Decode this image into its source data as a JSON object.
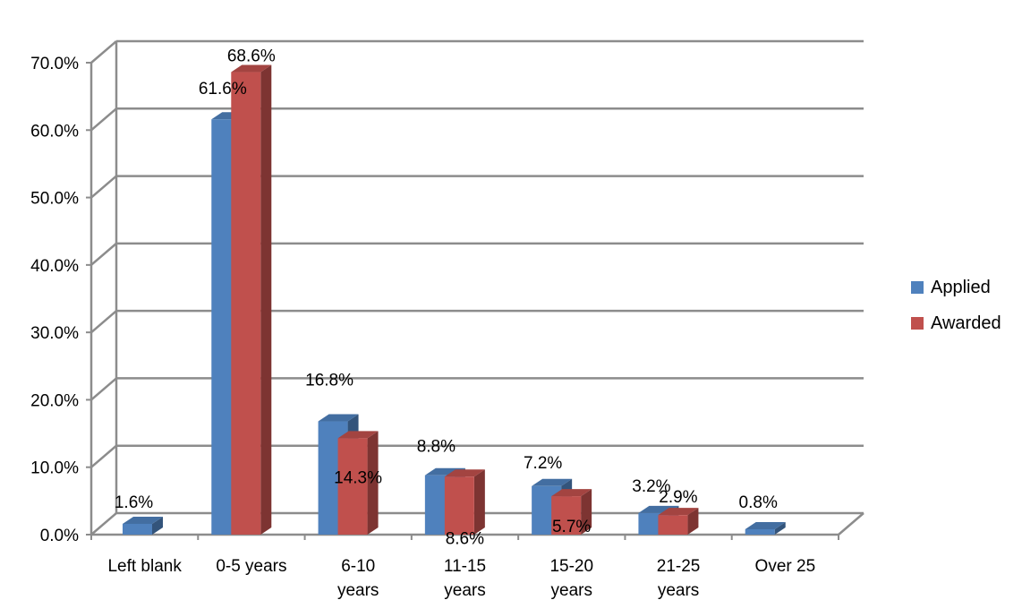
{
  "chart_data": {
    "type": "bar",
    "categories": [
      "Left blank",
      "0-5 years",
      "6-10 years",
      "11-15 years",
      "15-20 years",
      "21-25 years",
      "Over 25"
    ],
    "category_lines": [
      [
        "Left blank"
      ],
      [
        "0-5 years"
      ],
      [
        "6-10",
        "years"
      ],
      [
        "11-15",
        "years"
      ],
      [
        "15-20",
        "years"
      ],
      [
        "21-25",
        "years"
      ],
      [
        "Over 25"
      ]
    ],
    "series": [
      {
        "name": "Applied",
        "color": "#4F81BD",
        "values": [
          1.6,
          61.6,
          16.8,
          8.8,
          7.2,
          3.2,
          0.8
        ],
        "labels": [
          "1.6%",
          "61.6%",
          "16.8%",
          "8.8%",
          "7.2%",
          "3.2%",
          "0.8%"
        ]
      },
      {
        "name": "Awarded",
        "color": "#C0504D",
        "values": [
          null,
          68.6,
          14.3,
          8.6,
          5.7,
          2.9,
          null
        ],
        "labels": [
          "",
          "68.6%",
          "14.3%",
          "8.6%",
          "5.7%",
          "2.9%",
          ""
        ]
      }
    ],
    "yticks": [
      "0.0%",
      "10.0%",
      "20.0%",
      "30.0%",
      "40.0%",
      "50.0%",
      "60.0%",
      "70.0%"
    ],
    "ylim": [
      0,
      70
    ],
    "grid": true,
    "legend_position": "right",
    "three_d": true
  }
}
